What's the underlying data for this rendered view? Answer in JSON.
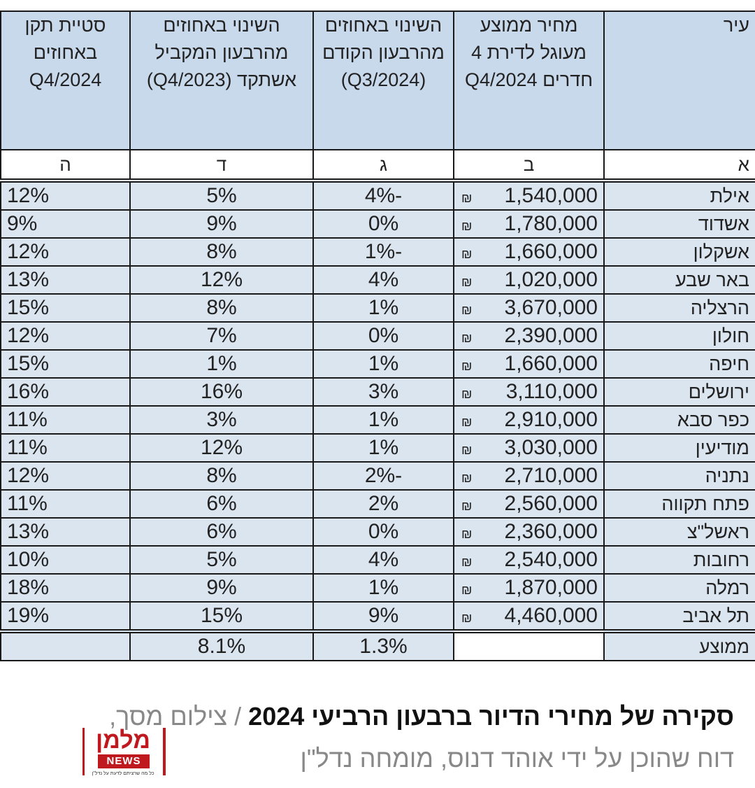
{
  "table": {
    "headers": {
      "city": "עיר",
      "price": "מחיר ממוצע מעוגל לדירת 4 חדרים Q4/2024",
      "qoq": "השינוי באחוזים מהרבעון הקודם (Q3/2024)",
      "yoy": "השינוי באחוזים מהרבעון המקביל אשתקד (Q4/2023)",
      "std": "סטיית תקן באחוזים Q4/2024"
    },
    "letters": {
      "city": "א",
      "price": "ב",
      "qoq": "ג",
      "yoy": "ד",
      "std": "ה"
    },
    "currency_symbol": "₪",
    "rows": [
      {
        "city": "אילת",
        "price": "1,540,000",
        "qoq": "-4%",
        "yoy": "5%",
        "std": "12%"
      },
      {
        "city": "אשדוד",
        "price": "1,780,000",
        "qoq": "0%",
        "yoy": "9%",
        "std": "9%"
      },
      {
        "city": "אשקלון",
        "price": "1,660,000",
        "qoq": "-1%",
        "yoy": "8%",
        "std": "12%"
      },
      {
        "city": "באר שבע",
        "price": "1,020,000",
        "qoq": "4%",
        "yoy": "12%",
        "std": "13%"
      },
      {
        "city": "הרצליה",
        "price": "3,670,000",
        "qoq": "1%",
        "yoy": "8%",
        "std": "15%"
      },
      {
        "city": "חולון",
        "price": "2,390,000",
        "qoq": "0%",
        "yoy": "7%",
        "std": "12%"
      },
      {
        "city": "חיפה",
        "price": "1,660,000",
        "qoq": "1%",
        "yoy": "1%",
        "std": "15%"
      },
      {
        "city": "ירושלים",
        "price": "3,110,000",
        "qoq": "3%",
        "yoy": "16%",
        "std": "16%"
      },
      {
        "city": "כפר סבא",
        "price": "2,910,000",
        "qoq": "1%",
        "yoy": "3%",
        "std": "11%"
      },
      {
        "city": "מודיעין",
        "price": "3,030,000",
        "qoq": "1%",
        "yoy": "12%",
        "std": "11%"
      },
      {
        "city": "נתניה",
        "price": "2,710,000",
        "qoq": "-2%",
        "yoy": "8%",
        "std": "12%"
      },
      {
        "city": "פתח תקווה",
        "price": "2,560,000",
        "qoq": "2%",
        "yoy": "6%",
        "std": "11%"
      },
      {
        "city": "ראשל\"צ",
        "price": "2,360,000",
        "qoq": "0%",
        "yoy": "6%",
        "std": "13%"
      },
      {
        "city": "רחובות",
        "price": "2,540,000",
        "qoq": "4%",
        "yoy": "5%",
        "std": "10%"
      },
      {
        "city": "רמלה",
        "price": "1,870,000",
        "qoq": "1%",
        "yoy": "9%",
        "std": "18%"
      },
      {
        "city": "תל אביב",
        "price": "4,460,000",
        "qoq": "9%",
        "yoy": "15%",
        "std": "19%"
      }
    ],
    "average": {
      "label": "ממוצע",
      "qoq": "1.3%",
      "yoy": "8.1%"
    }
  },
  "caption": {
    "title": "סקירה של מחירי הדיור ברבעון הרביעי 2024",
    "separator": " / ",
    "credit": "צילום מסך,",
    "credit_line2": "דוח שהוכן על ידי אוהד דנוס, מומחה נדל\"ן"
  },
  "logo": {
    "name": "מלמן",
    "news": "NEWS",
    "tagline": "כל מה שרציתם לדעת על נדל\"ן"
  },
  "colors": {
    "header_bg": "#c9d9ec",
    "row_bg": "#dbe5f0",
    "logo_red": "#c0181f"
  }
}
